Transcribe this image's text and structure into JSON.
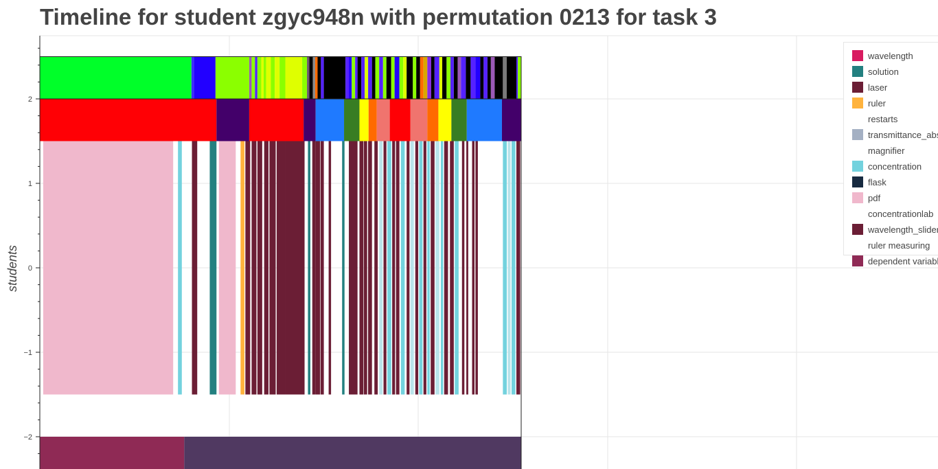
{
  "chart_data": {
    "type": "timeline",
    "title": "Timeline for student zgyc948n with permutation 0213 for task 3",
    "ylabel": "students",
    "xlabel": "",
    "ylim": [
      -2.4,
      2.8
    ],
    "y_ticks": [
      {
        "value": 2,
        "label": "2"
      },
      {
        "value": 1,
        "label": "1"
      },
      {
        "value": 0,
        "label": "0"
      },
      {
        "value": -1,
        "label": "−1"
      },
      {
        "value": -2,
        "label": "−2"
      }
    ],
    "grid": true,
    "legend_position": "top-right",
    "legend": [
      {
        "label": "wavelength",
        "color": "#d81b60"
      },
      {
        "label": "solution",
        "color": "#238080"
      },
      {
        "label": "laser",
        "color": "#6b1e35"
      },
      {
        "label": "ruler",
        "color": "#ffb33d"
      },
      {
        "label": "restarts",
        "color": "#ffffff"
      },
      {
        "label": "transmittance_abs",
        "color": "#a4b0c3"
      },
      {
        "label": "magnifier",
        "color": "#ffffff"
      },
      {
        "label": "concentration",
        "color": "#73d2de"
      },
      {
        "label": "flask",
        "color": "#172a40"
      },
      {
        "label": "pdf",
        "color": "#f0b8cc"
      },
      {
        "label": "concentrationlab",
        "color": "#ffffff"
      },
      {
        "label": "wavelength_slider",
        "color": "#6b1e35"
      },
      {
        "label": "ruler measuring",
        "color": "#ffffff"
      },
      {
        "label": "dependent variable",
        "color": "#8f2a55"
      }
    ],
    "rows": [
      {
        "name": "row-top",
        "y_range": [
          2.0,
          2.5
        ],
        "segments": [
          [
            0,
            0.315,
            "#00ff29"
          ],
          [
            0.315,
            0.32,
            "#3a2eff"
          ],
          [
            0.32,
            0.365,
            "#2200ff"
          ],
          [
            0.365,
            0.435,
            "#8bff00"
          ],
          [
            0.435,
            0.44,
            "#9b59b6"
          ],
          [
            0.44,
            0.447,
            "#8bff00"
          ],
          [
            0.447,
            0.452,
            "#5522ff"
          ],
          [
            0.452,
            0.46,
            "#8bff00"
          ],
          [
            0.46,
            0.465,
            "#dfff00"
          ],
          [
            0.465,
            0.47,
            "#8bff00"
          ],
          [
            0.47,
            0.48,
            "#dfff00"
          ],
          [
            0.48,
            0.488,
            "#8bff00"
          ],
          [
            0.488,
            0.498,
            "#dfff00"
          ],
          [
            0.498,
            0.51,
            "#8bff00"
          ],
          [
            0.51,
            0.545,
            "#dfff00"
          ],
          [
            0.545,
            0.555,
            "#8bff00"
          ],
          [
            0.555,
            0.56,
            "#6e5a6e"
          ],
          [
            0.56,
            0.567,
            "#000000"
          ],
          [
            0.567,
            0.572,
            "#8a8a8a"
          ],
          [
            0.572,
            0.577,
            "#ff6a00"
          ],
          [
            0.577,
            0.584,
            "#000000"
          ],
          [
            0.584,
            0.59,
            "#5522ff"
          ],
          [
            0.59,
            0.635,
            "#000000"
          ],
          [
            0.635,
            0.642,
            "#5522ff"
          ],
          [
            0.642,
            0.648,
            "#2200ff"
          ],
          [
            0.648,
            0.655,
            "#8bff00"
          ],
          [
            0.655,
            0.66,
            "#5522ff"
          ],
          [
            0.66,
            0.668,
            "#000000"
          ],
          [
            0.668,
            0.675,
            "#5522ff"
          ],
          [
            0.675,
            0.682,
            "#dfff00"
          ],
          [
            0.682,
            0.69,
            "#5522ff"
          ],
          [
            0.69,
            0.697,
            "#000000"
          ],
          [
            0.697,
            0.705,
            "#8bff00"
          ],
          [
            0.705,
            0.713,
            "#5522ff"
          ],
          [
            0.713,
            0.72,
            "#8bff00"
          ],
          [
            0.72,
            0.73,
            "#000000"
          ],
          [
            0.73,
            0.737,
            "#8bff00"
          ],
          [
            0.737,
            0.747,
            "#2200ff"
          ],
          [
            0.747,
            0.755,
            "#8bff00"
          ],
          [
            0.755,
            0.762,
            "#dfff00"
          ],
          [
            0.762,
            0.775,
            "#000000"
          ],
          [
            0.775,
            0.782,
            "#8bff00"
          ],
          [
            0.782,
            0.79,
            "#000000"
          ],
          [
            0.79,
            0.797,
            "#ff6a00"
          ],
          [
            0.797,
            0.805,
            "#d9a800"
          ],
          [
            0.805,
            0.813,
            "#8a2be2"
          ],
          [
            0.813,
            0.82,
            "#000000"
          ],
          [
            0.82,
            0.83,
            "#5522ff"
          ],
          [
            0.83,
            0.836,
            "#dfff00"
          ],
          [
            0.836,
            0.845,
            "#000000"
          ],
          [
            0.845,
            0.853,
            "#8bff00"
          ],
          [
            0.853,
            0.86,
            "#5522ff"
          ],
          [
            0.86,
            0.868,
            "#000000"
          ],
          [
            0.868,
            0.875,
            "#9b59b6"
          ],
          [
            0.875,
            0.885,
            "#5522ff"
          ],
          [
            0.885,
            0.895,
            "#000000"
          ],
          [
            0.895,
            0.905,
            "#5522ff"
          ],
          [
            0.905,
            0.915,
            "#2200ff"
          ],
          [
            0.915,
            0.922,
            "#000000"
          ],
          [
            0.922,
            0.93,
            "#5522ff"
          ],
          [
            0.93,
            0.937,
            "#000000"
          ],
          [
            0.937,
            0.945,
            "#9b59b6"
          ],
          [
            0.945,
            0.962,
            "#000000"
          ],
          [
            0.962,
            0.97,
            "#7a7a7a"
          ],
          [
            0.97,
            0.99,
            "#000000"
          ],
          [
            0.99,
            0.993,
            "#5522ff"
          ],
          [
            0.993,
            1.0,
            "#8bff00"
          ],
          [
            1.0,
            1.035,
            "#8bff00"
          ],
          [
            1.035,
            1.04,
            "#b22222"
          ]
        ]
      },
      {
        "name": "row-middle",
        "y_range": [
          1.5,
          2.0
        ],
        "segments": [
          [
            0,
            0.367,
            "#ff0005"
          ],
          [
            0.367,
            0.435,
            "#43006a"
          ],
          [
            0.435,
            0.548,
            "#ff0005"
          ],
          [
            0.548,
            0.573,
            "#43006a"
          ],
          [
            0.573,
            0.632,
            "#1f7aff"
          ],
          [
            0.632,
            0.664,
            "#387d23"
          ],
          [
            0.664,
            0.683,
            "#ffff00"
          ],
          [
            0.683,
            0.7,
            "#ff6a00"
          ],
          [
            0.7,
            0.727,
            "#f0746e"
          ],
          [
            0.727,
            0.77,
            "#ff0005"
          ],
          [
            0.77,
            0.805,
            "#f0746e"
          ],
          [
            0.805,
            0.828,
            "#ff6a00"
          ],
          [
            0.828,
            0.855,
            "#ffff00"
          ],
          [
            0.855,
            0.887,
            "#387d23"
          ],
          [
            0.887,
            0.96,
            "#1f7aff"
          ],
          [
            0.96,
            1.0,
            "#43006a"
          ],
          [
            1.0,
            1.04,
            "#43006a"
          ]
        ]
      },
      {
        "name": "row-students",
        "y_range": [
          -1.5,
          1.5
        ],
        "segments": [
          [
            0.007,
            0.277,
            "#f0b8cc"
          ],
          [
            0.287,
            0.295,
            "#73d2de"
          ],
          [
            0.316,
            0.327,
            "#6b1e35"
          ],
          [
            0.353,
            0.367,
            "#238080"
          ],
          [
            0.372,
            0.407,
            "#f0b8cc"
          ],
          [
            0.417,
            0.425,
            "#ffb33d"
          ],
          [
            0.427,
            0.437,
            "#6b1e35"
          ],
          [
            0.44,
            0.45,
            "#6b1e35"
          ],
          [
            0.452,
            0.462,
            "#6b1e35"
          ],
          [
            0.466,
            0.475,
            "#6b1e35"
          ],
          [
            0.477,
            0.49,
            "#6b1e35"
          ],
          [
            0.492,
            0.51,
            "#6b1e35"
          ],
          [
            0.51,
            0.55,
            "#6b1e35"
          ],
          [
            0.557,
            0.562,
            "#238080"
          ],
          [
            0.566,
            0.573,
            "#6b1e35"
          ],
          [
            0.573,
            0.582,
            "#6b1e35"
          ],
          [
            0.583,
            0.59,
            "#6b1e35"
          ],
          [
            0.6,
            0.605,
            "#6b1e35"
          ],
          [
            0.628,
            0.633,
            "#238080"
          ],
          [
            0.642,
            0.66,
            "#6b1e35"
          ],
          [
            0.664,
            0.672,
            "#6b1e35"
          ],
          [
            0.673,
            0.68,
            "#6b1e35"
          ],
          [
            0.682,
            0.69,
            "#6b1e35"
          ],
          [
            0.695,
            0.702,
            "#6b1e35"
          ],
          [
            0.705,
            0.712,
            "#b8e3ea"
          ],
          [
            0.714,
            0.72,
            "#6b1e35"
          ],
          [
            0.722,
            0.73,
            "#73d2de"
          ],
          [
            0.732,
            0.738,
            "#6b1e35"
          ],
          [
            0.74,
            0.747,
            "#6b1e35"
          ],
          [
            0.75,
            0.758,
            "#73d2de"
          ],
          [
            0.762,
            0.768,
            "#6b1e35"
          ],
          [
            0.77,
            0.777,
            "#b8e3ea"
          ],
          [
            0.78,
            0.786,
            "#6b1e35"
          ],
          [
            0.788,
            0.795,
            "#73d2de"
          ],
          [
            0.797,
            0.803,
            "#6b1e35"
          ],
          [
            0.805,
            0.81,
            "#73d2de"
          ],
          [
            0.812,
            0.82,
            "#6b1e35"
          ],
          [
            0.822,
            0.83,
            "#b8e3ea"
          ],
          [
            0.833,
            0.838,
            "#73d2de"
          ],
          [
            0.84,
            0.848,
            "#6b1e35"
          ],
          [
            0.852,
            0.86,
            "#6b1e35"
          ],
          [
            0.862,
            0.87,
            "#73d2de"
          ],
          [
            0.877,
            0.882,
            "#6b1e35"
          ],
          [
            0.886,
            0.89,
            "#6b1e35"
          ],
          [
            0.898,
            0.903,
            "#6b1e35"
          ],
          [
            0.905,
            0.91,
            "#6b1e35"
          ],
          [
            0.962,
            0.97,
            "#73d2de"
          ],
          [
            0.972,
            0.978,
            "#b8e3ea"
          ],
          [
            0.98,
            0.988,
            "#73d2de"
          ],
          [
            0.99,
            0.998,
            "#6b1e35"
          ],
          [
            1.01,
            1.015,
            "#b8e3ea"
          ],
          [
            1.018,
            1.023,
            "#73d2de"
          ],
          [
            1.026,
            1.032,
            "#6b1e35"
          ]
        ]
      },
      {
        "name": "row-bottom",
        "y_range": [
          -2.4,
          -2.0
        ],
        "segments": [
          [
            0,
            0.3,
            "#8f2a55"
          ],
          [
            0.3,
            1.04,
            "#503961"
          ]
        ]
      }
    ]
  }
}
